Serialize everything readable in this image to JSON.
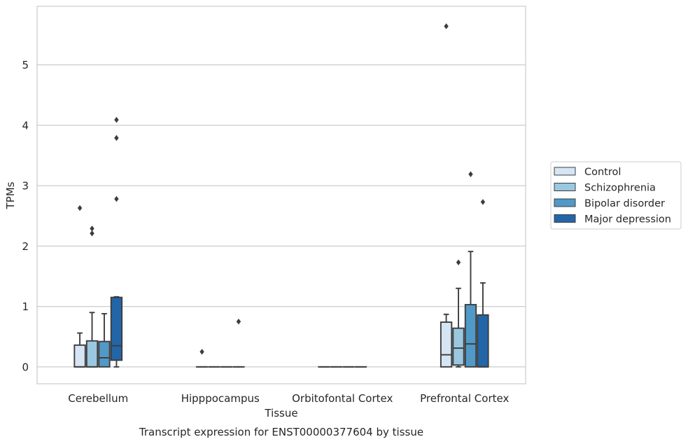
{
  "chart_data": {
    "type": "box",
    "title": "",
    "caption": "Transcript expression for ENST00000377604 by tissue",
    "xlabel": "Tissue",
    "ylabel": "TPMs",
    "ylim": [
      -0.28,
      5.97
    ],
    "yticks": [
      0,
      1,
      2,
      3,
      4,
      5
    ],
    "grid": "horizontal",
    "legend_position": "right",
    "categories": [
      "Cerebellum",
      "Hipppocampus",
      "Orbitofontal Cortex",
      "Prefrontal Cortex"
    ],
    "series": [
      {
        "name": "Control",
        "color": "#d6e5f4",
        "boxes": [
          {
            "q1": 0.0,
            "median": 0.0,
            "q3": 0.36,
            "whisker_low": 0.0,
            "whisker_high": 0.56,
            "outliers": [
              2.63
            ]
          },
          {
            "q1": 0.0,
            "median": 0.0,
            "q3": 0.0,
            "whisker_low": 0.0,
            "whisker_high": 0.0,
            "outliers": [
              0.25
            ]
          },
          {
            "q1": 0.0,
            "median": 0.0,
            "q3": 0.0,
            "whisker_low": 0.0,
            "whisker_high": 0.0,
            "outliers": []
          },
          {
            "q1": 0.0,
            "median": 0.2,
            "q3": 0.74,
            "whisker_low": 0.0,
            "whisker_high": 0.87,
            "outliers": [
              5.64
            ]
          }
        ]
      },
      {
        "name": "Schizophrenia",
        "color": "#9ac8e0",
        "boxes": [
          {
            "q1": 0.0,
            "median": 0.0,
            "q3": 0.43,
            "whisker_low": 0.0,
            "whisker_high": 0.9,
            "outliers": [
              2.21,
              2.29
            ]
          },
          {
            "q1": 0.0,
            "median": 0.0,
            "q3": 0.0,
            "whisker_low": 0.0,
            "whisker_high": 0.0,
            "outliers": []
          },
          {
            "q1": 0.0,
            "median": 0.0,
            "q3": 0.0,
            "whisker_low": 0.0,
            "whisker_high": 0.0,
            "outliers": []
          },
          {
            "q1": 0.03,
            "median": 0.31,
            "q3": 0.64,
            "whisker_low": 0.0,
            "whisker_high": 1.3,
            "outliers": [
              1.73
            ]
          }
        ]
      },
      {
        "name": "Bipolar disorder",
        "color": "#5199c6",
        "boxes": [
          {
            "q1": 0.0,
            "median": 0.15,
            "q3": 0.42,
            "whisker_low": 0.0,
            "whisker_high": 0.88,
            "outliers": []
          },
          {
            "q1": 0.0,
            "median": 0.0,
            "q3": 0.0,
            "whisker_low": 0.0,
            "whisker_high": 0.0,
            "outliers": []
          },
          {
            "q1": 0.0,
            "median": 0.0,
            "q3": 0.0,
            "whisker_low": 0.0,
            "whisker_high": 0.0,
            "outliers": []
          },
          {
            "q1": 0.0,
            "median": 0.38,
            "q3": 1.03,
            "whisker_low": 0.0,
            "whisker_high": 1.91,
            "outliers": [
              3.19
            ]
          }
        ]
      },
      {
        "name": "Major depression",
        "color": "#2366a8",
        "boxes": [
          {
            "q1": 0.11,
            "median": 0.35,
            "q3": 1.15,
            "whisker_low": 0.0,
            "whisker_high": 1.16,
            "outliers": [
              2.78,
              3.79,
              4.09
            ]
          },
          {
            "q1": 0.0,
            "median": 0.0,
            "q3": 0.0,
            "whisker_low": 0.0,
            "whisker_high": 0.0,
            "outliers": [
              0.75
            ]
          },
          {
            "q1": 0.0,
            "median": 0.0,
            "q3": 0.0,
            "whisker_low": 0.0,
            "whisker_high": 0.0,
            "outliers": []
          },
          {
            "q1": 0.0,
            "median": 0.0,
            "q3": 0.86,
            "whisker_low": 0.0,
            "whisker_high": 1.39,
            "outliers": [
              2.73
            ]
          }
        ]
      }
    ]
  }
}
